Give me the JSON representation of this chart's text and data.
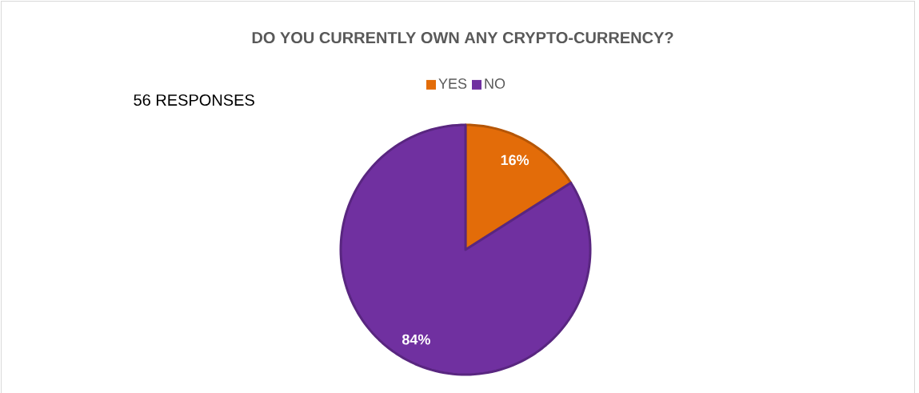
{
  "chart_data": {
    "type": "pie",
    "title": "DO YOU CURRENTLY OWN ANY CRYPTO-CURRENCY?",
    "categories": [
      "YES",
      "NO"
    ],
    "values": [
      16,
      84
    ],
    "colors": [
      "#e36c09",
      "#7030a0"
    ],
    "value_labels": [
      "16%",
      "84%"
    ],
    "annotations": [
      "56 RESPONSES"
    ],
    "legend": "top"
  }
}
